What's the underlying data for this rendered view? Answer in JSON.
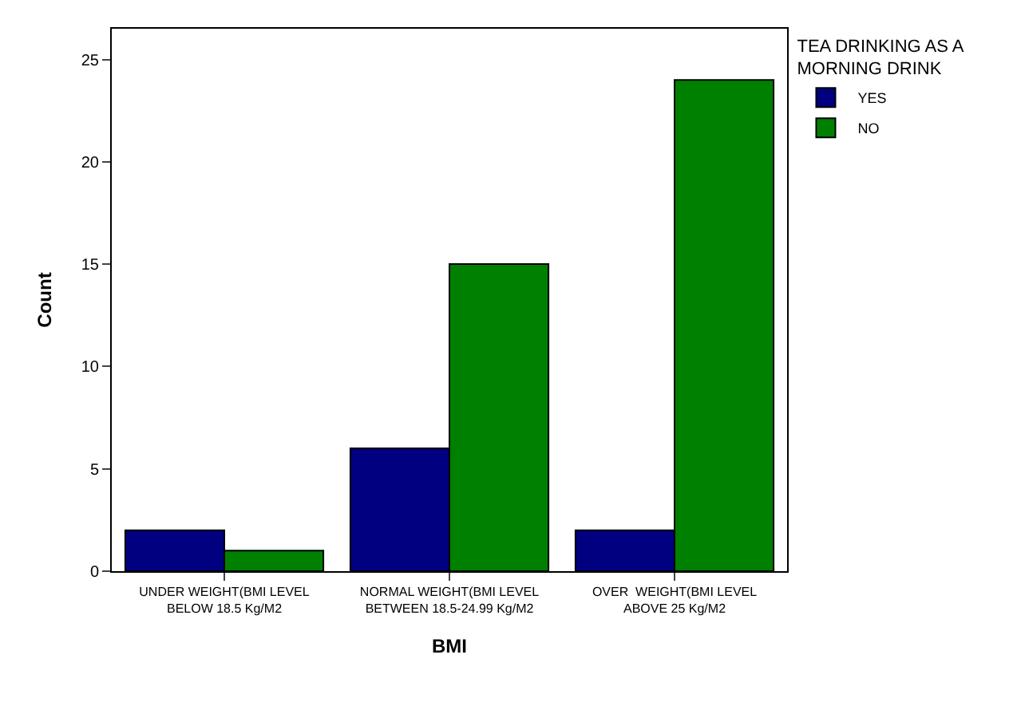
{
  "chart_data": {
    "type": "bar",
    "xlabel": "BMI",
    "ylabel": "Count",
    "legend_title": "TEA DRINKING AS A MORNING DRINK",
    "categories": [
      "UNDER WEIGHT(BMI LEVEL BELOW 18.5 Kg/M2",
      "NORMAL WEIGHT(BMI LEVEL BETWEEN 18.5-24.99 Kg/M2",
      "OVER  WEIGHT(BMI LEVEL ABOVE 25 Kg/M2"
    ],
    "series": [
      {
        "name": "YES",
        "color": "#000080",
        "values": [
          2,
          6,
          2
        ]
      },
      {
        "name": "NO",
        "color": "#008000",
        "values": [
          1,
          15,
          24
        ]
      }
    ],
    "ylim": [
      0,
      26.5
    ],
    "yticks": [
      0,
      5,
      10,
      15,
      20,
      25
    ],
    "legend": "top right"
  }
}
